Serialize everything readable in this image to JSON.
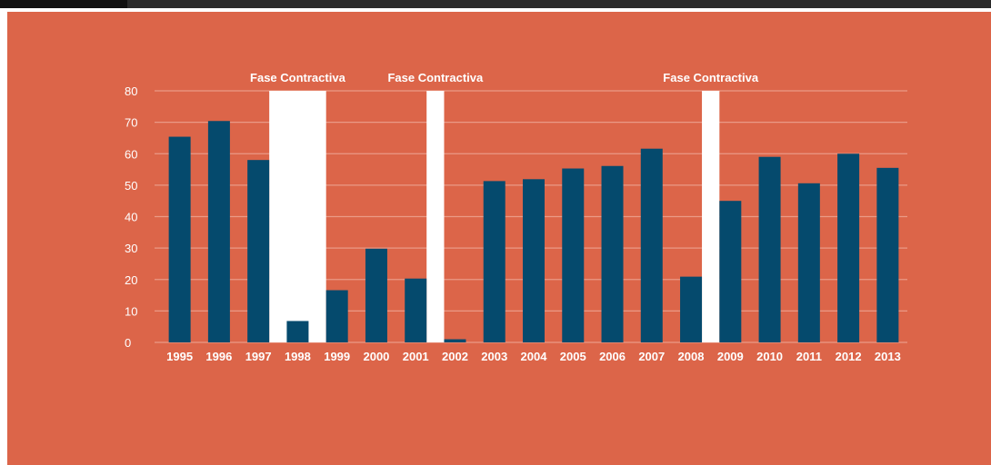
{
  "colors": {
    "background": "#dc6549",
    "bar": "#054a6d",
    "phase_band": "#ffffff",
    "grid": "#ea9a86",
    "text": "#ffffff"
  },
  "chart_data": {
    "type": "bar",
    "title": "",
    "xlabel": "",
    "ylabel": "",
    "ylim": [
      0,
      80
    ],
    "yticks": [
      0,
      10,
      20,
      30,
      40,
      50,
      60,
      70,
      80
    ],
    "grid": true,
    "categories": [
      "1995",
      "1996",
      "1997",
      "1998",
      "1999",
      "2000",
      "2001",
      "2002",
      "2003",
      "2004",
      "2005",
      "2006",
      "2007",
      "2008",
      "2009",
      "2010",
      "2011",
      "2012",
      "2013"
    ],
    "series": [
      {
        "values": [
          65.4,
          70.4,
          58.0,
          6.8,
          16.6,
          29.8,
          20.3,
          1.0,
          51.3,
          51.9,
          55.3,
          56.1,
          61.6,
          20.9,
          45.0,
          59.0,
          50.6,
          60.0,
          55.5
        ]
      }
    ],
    "annotations": [
      {
        "label": "Fase Contractiva",
        "from": "1997",
        "to": "1999"
      },
      {
        "label": "Fase Contractiva",
        "from": "2001",
        "to": "2002"
      },
      {
        "label": "Fase Contractiva",
        "from": "2008",
        "to": "2009"
      }
    ]
  }
}
